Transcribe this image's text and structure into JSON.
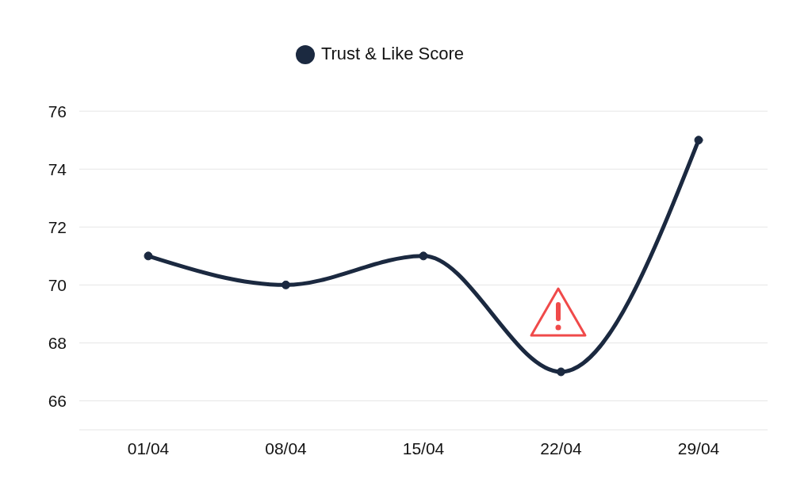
{
  "chart_data": {
    "type": "line",
    "categories": [
      "01/04",
      "08/04",
      "15/04",
      "22/04",
      "29/04"
    ],
    "series": [
      {
        "name": "Trust & Like Score",
        "color": "#1b2940",
        "values": [
          71,
          70,
          71,
          67,
          75
        ]
      }
    ],
    "ylim": [
      65,
      76
    ],
    "yticks": [
      66,
      68,
      70,
      72,
      74,
      76
    ],
    "grid": "y",
    "legend": "top",
    "marker": "circle",
    "line_style": "solid"
  }
}
